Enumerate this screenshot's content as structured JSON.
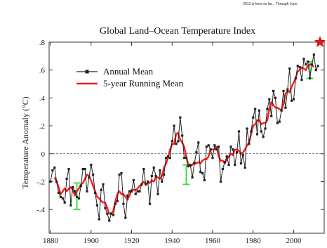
{
  "chart_data": {
    "type": "line",
    "title": "Global Land–Ocean Temperature Index",
    "corner_note": "2013 is here so far... Through June",
    "xlabel": "",
    "ylabel": "Temperature Anomaly (°C)",
    "xlim": [
      1880,
      2013
    ],
    "ylim": [
      -0.5,
      0.8
    ],
    "x_ticks": [
      1880,
      1900,
      1920,
      1940,
      1960,
      1980,
      2000
    ],
    "y_ticks": [
      -0.4,
      -0.2,
      0,
      0.2,
      0.4,
      0.6,
      0.8
    ],
    "y_tick_labels": [
      "-.4",
      "-.2",
      "0",
      ".2",
      ".4",
      ".6",
      ".8"
    ],
    "legend_position": "top-left",
    "colors": {
      "annual": "#222222",
      "running": "#ff1a1a",
      "uncertainty": "#33dd33",
      "star": "#ee1111"
    },
    "series": [
      {
        "name": "Annual Mean",
        "x": [
          1880,
          1881,
          1882,
          1883,
          1884,
          1885,
          1886,
          1887,
          1888,
          1889,
          1890,
          1891,
          1892,
          1893,
          1894,
          1895,
          1896,
          1897,
          1898,
          1899,
          1900,
          1901,
          1902,
          1903,
          1904,
          1905,
          1906,
          1907,
          1908,
          1909,
          1910,
          1911,
          1912,
          1913,
          1914,
          1915,
          1916,
          1917,
          1918,
          1919,
          1920,
          1921,
          1922,
          1923,
          1924,
          1925,
          1926,
          1927,
          1928,
          1929,
          1930,
          1931,
          1932,
          1933,
          1934,
          1935,
          1936,
          1937,
          1938,
          1939,
          1940,
          1941,
          1942,
          1943,
          1944,
          1945,
          1946,
          1947,
          1948,
          1949,
          1950,
          1951,
          1952,
          1953,
          1954,
          1955,
          1956,
          1957,
          1958,
          1959,
          1960,
          1961,
          1962,
          1963,
          1964,
          1965,
          1966,
          1967,
          1968,
          1969,
          1970,
          1971,
          1972,
          1973,
          1974,
          1975,
          1976,
          1977,
          1978,
          1979,
          1980,
          1981,
          1982,
          1983,
          1984,
          1985,
          1986,
          1987,
          1988,
          1989,
          1990,
          1991,
          1992,
          1993,
          1994,
          1995,
          1996,
          1997,
          1998,
          1999,
          2000,
          2001,
          2002,
          2003,
          2004,
          2005,
          2006,
          2007,
          2008,
          2009,
          2010,
          2011,
          2012
        ],
        "values": [
          -0.2,
          -0.12,
          -0.1,
          -0.2,
          -0.28,
          -0.31,
          -0.32,
          -0.35,
          -0.18,
          -0.11,
          -0.37,
          -0.24,
          -0.27,
          -0.31,
          -0.32,
          -0.23,
          -0.11,
          -0.11,
          -0.27,
          -0.17,
          -0.08,
          -0.15,
          -0.28,
          -0.37,
          -0.47,
          -0.26,
          -0.22,
          -0.39,
          -0.43,
          -0.48,
          -0.43,
          -0.44,
          -0.36,
          -0.34,
          -0.15,
          -0.14,
          -0.36,
          -0.46,
          -0.3,
          -0.27,
          -0.27,
          -0.19,
          -0.29,
          -0.27,
          -0.27,
          -0.22,
          -0.11,
          -0.22,
          -0.2,
          -0.36,
          -0.16,
          -0.1,
          -0.16,
          -0.29,
          -0.12,
          -0.2,
          -0.15,
          -0.03,
          -0.02,
          -0.03,
          0.09,
          0.2,
          0.07,
          0.09,
          0.26,
          0.13,
          -0.03,
          -0.03,
          -0.09,
          -0.08,
          -0.17,
          -0.07,
          0.01,
          0.08,
          -0.13,
          -0.14,
          -0.19,
          0.05,
          0.06,
          0.03,
          -0.03,
          0.06,
          0.03,
          0.05,
          -0.2,
          -0.11,
          -0.06,
          -0.02,
          -0.08,
          0.05,
          0.03,
          -0.08,
          0.01,
          0.16,
          -0.07,
          -0.01,
          -0.1,
          0.18,
          0.07,
          0.16,
          0.26,
          0.32,
          0.14,
          0.31,
          0.16,
          0.12,
          0.18,
          0.32,
          0.39,
          0.27,
          0.45,
          0.4,
          0.22,
          0.23,
          0.31,
          0.45,
          0.33,
          0.46,
          0.61,
          0.38,
          0.39,
          0.54,
          0.63,
          0.62,
          0.53,
          0.68,
          0.64,
          0.66,
          0.54,
          0.64,
          0.71,
          0.6,
          0.63
        ]
      },
      {
        "name": "5-year Running Mean",
        "x": [
          1882,
          1883,
          1884,
          1885,
          1886,
          1887,
          1888,
          1889,
          1890,
          1891,
          1892,
          1893,
          1894,
          1895,
          1896,
          1897,
          1898,
          1899,
          1900,
          1901,
          1902,
          1903,
          1904,
          1905,
          1906,
          1907,
          1908,
          1909,
          1910,
          1911,
          1912,
          1913,
          1914,
          1915,
          1916,
          1917,
          1918,
          1919,
          1920,
          1921,
          1922,
          1923,
          1924,
          1925,
          1926,
          1927,
          1928,
          1929,
          1930,
          1931,
          1932,
          1933,
          1934,
          1935,
          1936,
          1937,
          1938,
          1939,
          1940,
          1941,
          1942,
          1943,
          1944,
          1945,
          1946,
          1947,
          1948,
          1949,
          1950,
          1951,
          1952,
          1953,
          1954,
          1955,
          1956,
          1957,
          1958,
          1959,
          1960,
          1961,
          1962,
          1963,
          1964,
          1965,
          1966,
          1967,
          1968,
          1969,
          1970,
          1971,
          1972,
          1973,
          1974,
          1975,
          1976,
          1977,
          1978,
          1979,
          1980,
          1981,
          1982,
          1983,
          1984,
          1985,
          1986,
          1987,
          1988,
          1989,
          1990,
          1991,
          1992,
          1993,
          1994,
          1995,
          1996,
          1997,
          1998,
          1999,
          2000,
          2001,
          2002,
          2003,
          2004,
          2005,
          2006,
          2007,
          2008,
          2009,
          2010
        ],
        "values": [
          -0.17,
          -0.2,
          -0.24,
          -0.29,
          -0.27,
          -0.25,
          -0.27,
          -0.25,
          -0.24,
          -0.26,
          -0.3,
          -0.27,
          -0.25,
          -0.22,
          -0.21,
          -0.18,
          -0.15,
          -0.16,
          -0.19,
          -0.23,
          -0.27,
          -0.31,
          -0.32,
          -0.34,
          -0.35,
          -0.35,
          -0.39,
          -0.43,
          -0.43,
          -0.41,
          -0.34,
          -0.29,
          -0.27,
          -0.29,
          -0.29,
          -0.31,
          -0.33,
          -0.3,
          -0.26,
          -0.26,
          -0.26,
          -0.25,
          -0.23,
          -0.22,
          -0.2,
          -0.22,
          -0.21,
          -0.21,
          -0.19,
          -0.2,
          -0.17,
          -0.17,
          -0.18,
          -0.16,
          -0.1,
          -0.07,
          -0.03,
          0.03,
          0.07,
          0.07,
          0.14,
          0.15,
          0.1,
          0.08,
          0.05,
          -0.02,
          -0.08,
          -0.09,
          -0.08,
          -0.06,
          -0.07,
          -0.06,
          -0.07,
          -0.05,
          -0.04,
          -0.04,
          -0.02,
          0.03,
          0.03,
          0.03,
          0.05,
          -0.02,
          -0.05,
          -0.05,
          -0.07,
          -0.04,
          -0.02,
          0.0,
          -0.01,
          0.03,
          0.03,
          0.02,
          0.0,
          0.01,
          0.03,
          0.06,
          0.08,
          0.14,
          0.2,
          0.21,
          0.24,
          0.24,
          0.21,
          0.22,
          0.22,
          0.24,
          0.32,
          0.37,
          0.35,
          0.33,
          0.33,
          0.32,
          0.31,
          0.36,
          0.43,
          0.45,
          0.44,
          0.48,
          0.51,
          0.54,
          0.59,
          0.6,
          0.62,
          0.61,
          0.6,
          0.63,
          0.64,
          0.64,
          0.62
        ]
      }
    ],
    "uncertainty_bars": [
      {
        "x": 1893,
        "low": -0.4,
        "high": -0.21
      },
      {
        "x": 1947,
        "low": -0.22,
        "high": -0.08
      },
      {
        "x": 2008,
        "low": 0.54,
        "high": 0.66
      }
    ],
    "highlight_star": {
      "x": 2013,
      "value": 0.8
    }
  }
}
